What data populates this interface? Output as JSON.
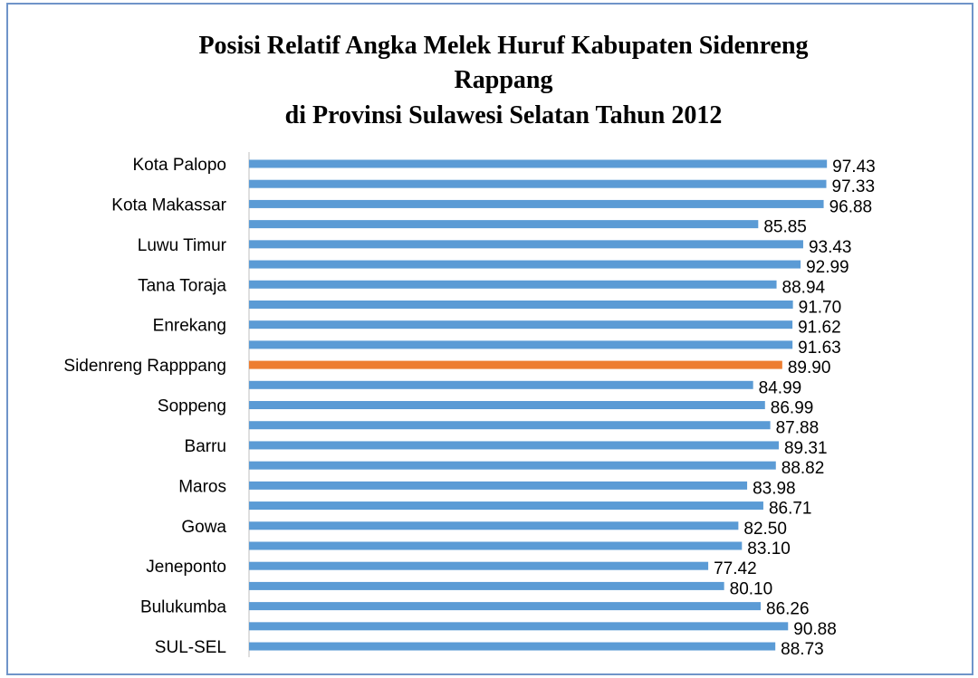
{
  "chart_data": {
    "type": "bar",
    "orientation": "horizontal",
    "title": [
      "Posisi Relatif Angka Melek Huruf Kabupaten Sidenreng",
      "Rappang",
      "di Provinsi Sulawesi Selatan Tahun 2012"
    ],
    "categories": [
      "Kota Palopo",
      null,
      "Kota Makassar",
      null,
      "Luwu Timur",
      null,
      "Tana Toraja",
      null,
      "Enrekang",
      null,
      "Sidenreng Rapppang",
      null,
      "Soppeng",
      null,
      "Barru",
      null,
      "Maros",
      null,
      "Gowa",
      null,
      "Jeneponto",
      null,
      "Bulukumba",
      null,
      "SUL-SEL"
    ],
    "values": [
      97.43,
      97.33,
      96.88,
      85.85,
      93.43,
      92.99,
      88.94,
      91.7,
      91.62,
      91.63,
      89.9,
      84.99,
      86.99,
      87.88,
      89.31,
      88.82,
      83.98,
      86.71,
      82.5,
      83.1,
      77.42,
      80.1,
      86.26,
      90.88,
      88.73
    ],
    "value_labels": [
      "97.43",
      "97.33",
      "96.88",
      "85.85",
      "93.43",
      "92.99",
      "88.94",
      "91.70",
      "91.62",
      "91.63",
      "89.90",
      "84.99",
      "86.99",
      "87.88",
      "89.31",
      "88.82",
      "83.98",
      "86.71",
      "82.50",
      "83.10",
      "77.42",
      "80.10",
      "86.26",
      "90.88",
      "88.73"
    ],
    "colors": [
      "#5b9bd5",
      "#5b9bd5",
      "#5b9bd5",
      "#5b9bd5",
      "#5b9bd5",
      "#5b9bd5",
      "#5b9bd5",
      "#5b9bd5",
      "#5b9bd5",
      "#5b9bd5",
      "#ed7d31",
      "#5b9bd5",
      "#5b9bd5",
      "#5b9bd5",
      "#5b9bd5",
      "#5b9bd5",
      "#5b9bd5",
      "#5b9bd5",
      "#5b9bd5",
      "#5b9bd5",
      "#5b9bd5",
      "#5b9bd5",
      "#5b9bd5",
      "#5b9bd5",
      "#5b9bd5"
    ],
    "xlim": [
      0,
      100
    ]
  }
}
